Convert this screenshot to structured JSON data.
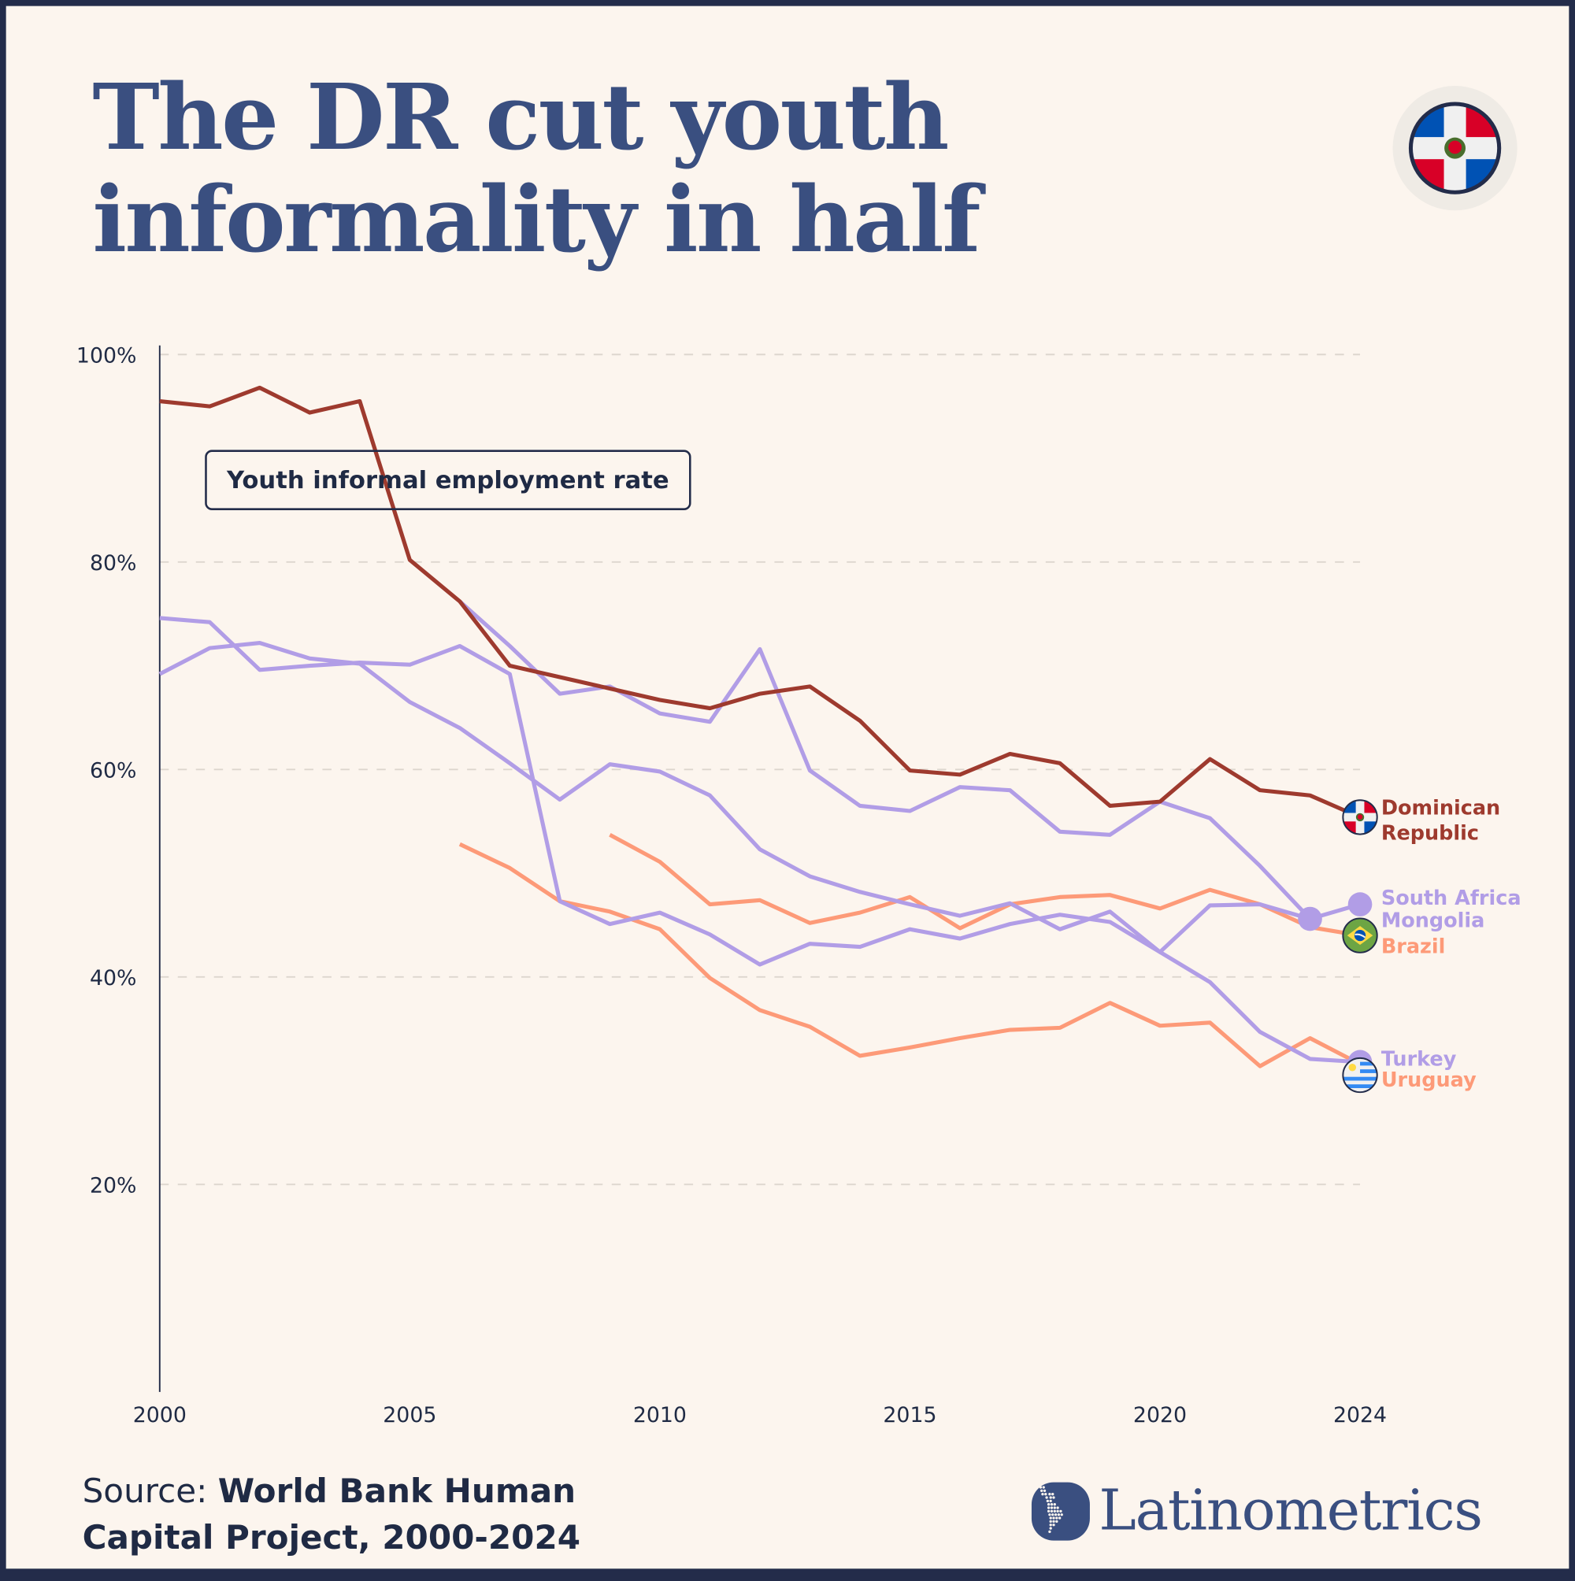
{
  "title": {
    "line1": "The DR cut youth",
    "line2": "informality in half"
  },
  "header_flag_icon": "dominican-republic-flag-icon",
  "legend_box": "Youth informal employment rate",
  "source": {
    "label": "Source:",
    "text": "World Bank Human Capital Project, 2000-2024"
  },
  "brand": "Latinometrics",
  "colors": {
    "background": "#fcf5ee",
    "title": "#3a4f80",
    "dominican_republic": "#9e3a2e",
    "purple": "#b19de6",
    "orange": "#fd9a78",
    "text": "#1f2a44"
  },
  "chart_data": {
    "type": "line",
    "title": "The DR cut youth informality in half",
    "ylabel": "Youth informal employment rate",
    "xlim": [
      2000,
      2024
    ],
    "ylim": [
      0,
      100
    ],
    "x_ticks": [
      "2000",
      "2005",
      "2010",
      "2015",
      "2020",
      "2024"
    ],
    "y_ticks": [
      "20%",
      "40%",
      "60%",
      "80%",
      "100%"
    ],
    "grid": "horizontal dashed",
    "series": [
      {
        "name": "Dominican Republic",
        "label_lines": [
          "Dominican",
          "Republic"
        ],
        "color": "#9e3a2e",
        "marker": "dominican-republic-flag-icon",
        "x": [
          2000,
          2001,
          2002,
          2003,
          2004,
          2005,
          2006,
          2007,
          2008,
          2009,
          2010,
          2011,
          2012,
          2013,
          2014,
          2015,
          2016,
          2017,
          2018,
          2019,
          2020,
          2021,
          2022,
          2023,
          2024
        ],
        "y": [
          95.5,
          95.0,
          96.8,
          94.4,
          95.5,
          80.2,
          76.2,
          70.0,
          68.9,
          67.8,
          66.7,
          65.9,
          67.3,
          68.0,
          64.7,
          59.9,
          59.5,
          61.5,
          60.6,
          56.5,
          56.9,
          61.0,
          58.0,
          57.5,
          55.4
        ]
      },
      {
        "name": "South Africa",
        "label_lines": [
          "South Africa"
        ],
        "color": "#b19de6",
        "marker": "dot",
        "x": [
          2000,
          2001,
          2002,
          2003,
          2004,
          2005,
          2006,
          2007,
          2008,
          2009,
          2010,
          2011,
          2012,
          2013,
          2014,
          2015,
          2016,
          2017,
          2018,
          2019,
          2020,
          2021,
          2022,
          2023,
          2024
        ],
        "y": [
          74.6,
          74.2,
          69.6,
          70.0,
          70.3,
          70.1,
          71.9,
          69.2,
          47.3,
          45.1,
          46.2,
          44.1,
          41.2,
          43.2,
          42.9,
          44.6,
          43.7,
          45.1,
          46.0,
          45.3,
          42.4,
          46.9,
          47.0,
          45.6,
          47.0
        ]
      },
      {
        "name": "Mongolia",
        "label_lines": [
          "Mongolia"
        ],
        "color": "#b19de6",
        "marker": "dot",
        "x": [
          2006,
          2007,
          2008,
          2009,
          2010,
          2011,
          2012,
          2013,
          2014,
          2015,
          2016,
          2017,
          2018,
          2019,
          2020,
          2021,
          2022,
          2023
        ],
        "y": [
          76.2,
          71.9,
          67.3,
          68.0,
          65.4,
          64.6,
          71.6,
          59.9,
          56.5,
          56.0,
          58.3,
          58.0,
          54.0,
          53.7,
          56.9,
          55.3,
          50.7,
          45.6
        ]
      },
      {
        "name": "Turkey",
        "label_lines": [
          "Turkey"
        ],
        "color": "#b19de6",
        "marker": "dot",
        "x": [
          2000,
          2001,
          2002,
          2003,
          2004,
          2005,
          2006,
          2007,
          2008,
          2009,
          2010,
          2011,
          2012,
          2013,
          2014,
          2015,
          2016,
          2017,
          2018,
          2019,
          2020,
          2021,
          2022,
          2023,
          2024
        ],
        "y": [
          69.2,
          71.7,
          72.2,
          70.7,
          70.2,
          66.5,
          64.0,
          60.6,
          57.1,
          60.5,
          59.8,
          57.5,
          52.3,
          49.7,
          48.2,
          47.0,
          45.9,
          47.1,
          44.6,
          46.3,
          42.4,
          39.5,
          34.7,
          32.1,
          31.8
        ]
      },
      {
        "name": "Brazil",
        "label_lines": [
          "Brazil"
        ],
        "color": "#fd9a78",
        "marker": "brazil-flag-icon",
        "x": [
          2009,
          2010,
          2011,
          2012,
          2013,
          2014,
          2015,
          2016,
          2017,
          2018,
          2019,
          2020,
          2021,
          2022,
          2023,
          2024
        ],
        "y": [
          53.7,
          51.1,
          47.0,
          47.4,
          45.2,
          46.2,
          47.7,
          44.7,
          47.0,
          47.7,
          47.9,
          46.6,
          48.4,
          47.0,
          44.8,
          44.0
        ]
      },
      {
        "name": "Uruguay",
        "label_lines": [
          "Uruguay"
        ],
        "color": "#fd9a78",
        "marker": "uruguay-flag-icon",
        "x": [
          2006,
          2007,
          2008,
          2009,
          2010,
          2011,
          2012,
          2013,
          2014,
          2015,
          2016,
          2017,
          2018,
          2019,
          2020,
          2021,
          2022,
          2023,
          2024
        ],
        "y": [
          52.8,
          50.5,
          47.3,
          46.3,
          44.6,
          39.9,
          36.8,
          35.2,
          32.4,
          33.2,
          34.1,
          34.9,
          35.1,
          37.5,
          35.3,
          35.6,
          31.4,
          34.1,
          31.6
        ]
      }
    ]
  }
}
